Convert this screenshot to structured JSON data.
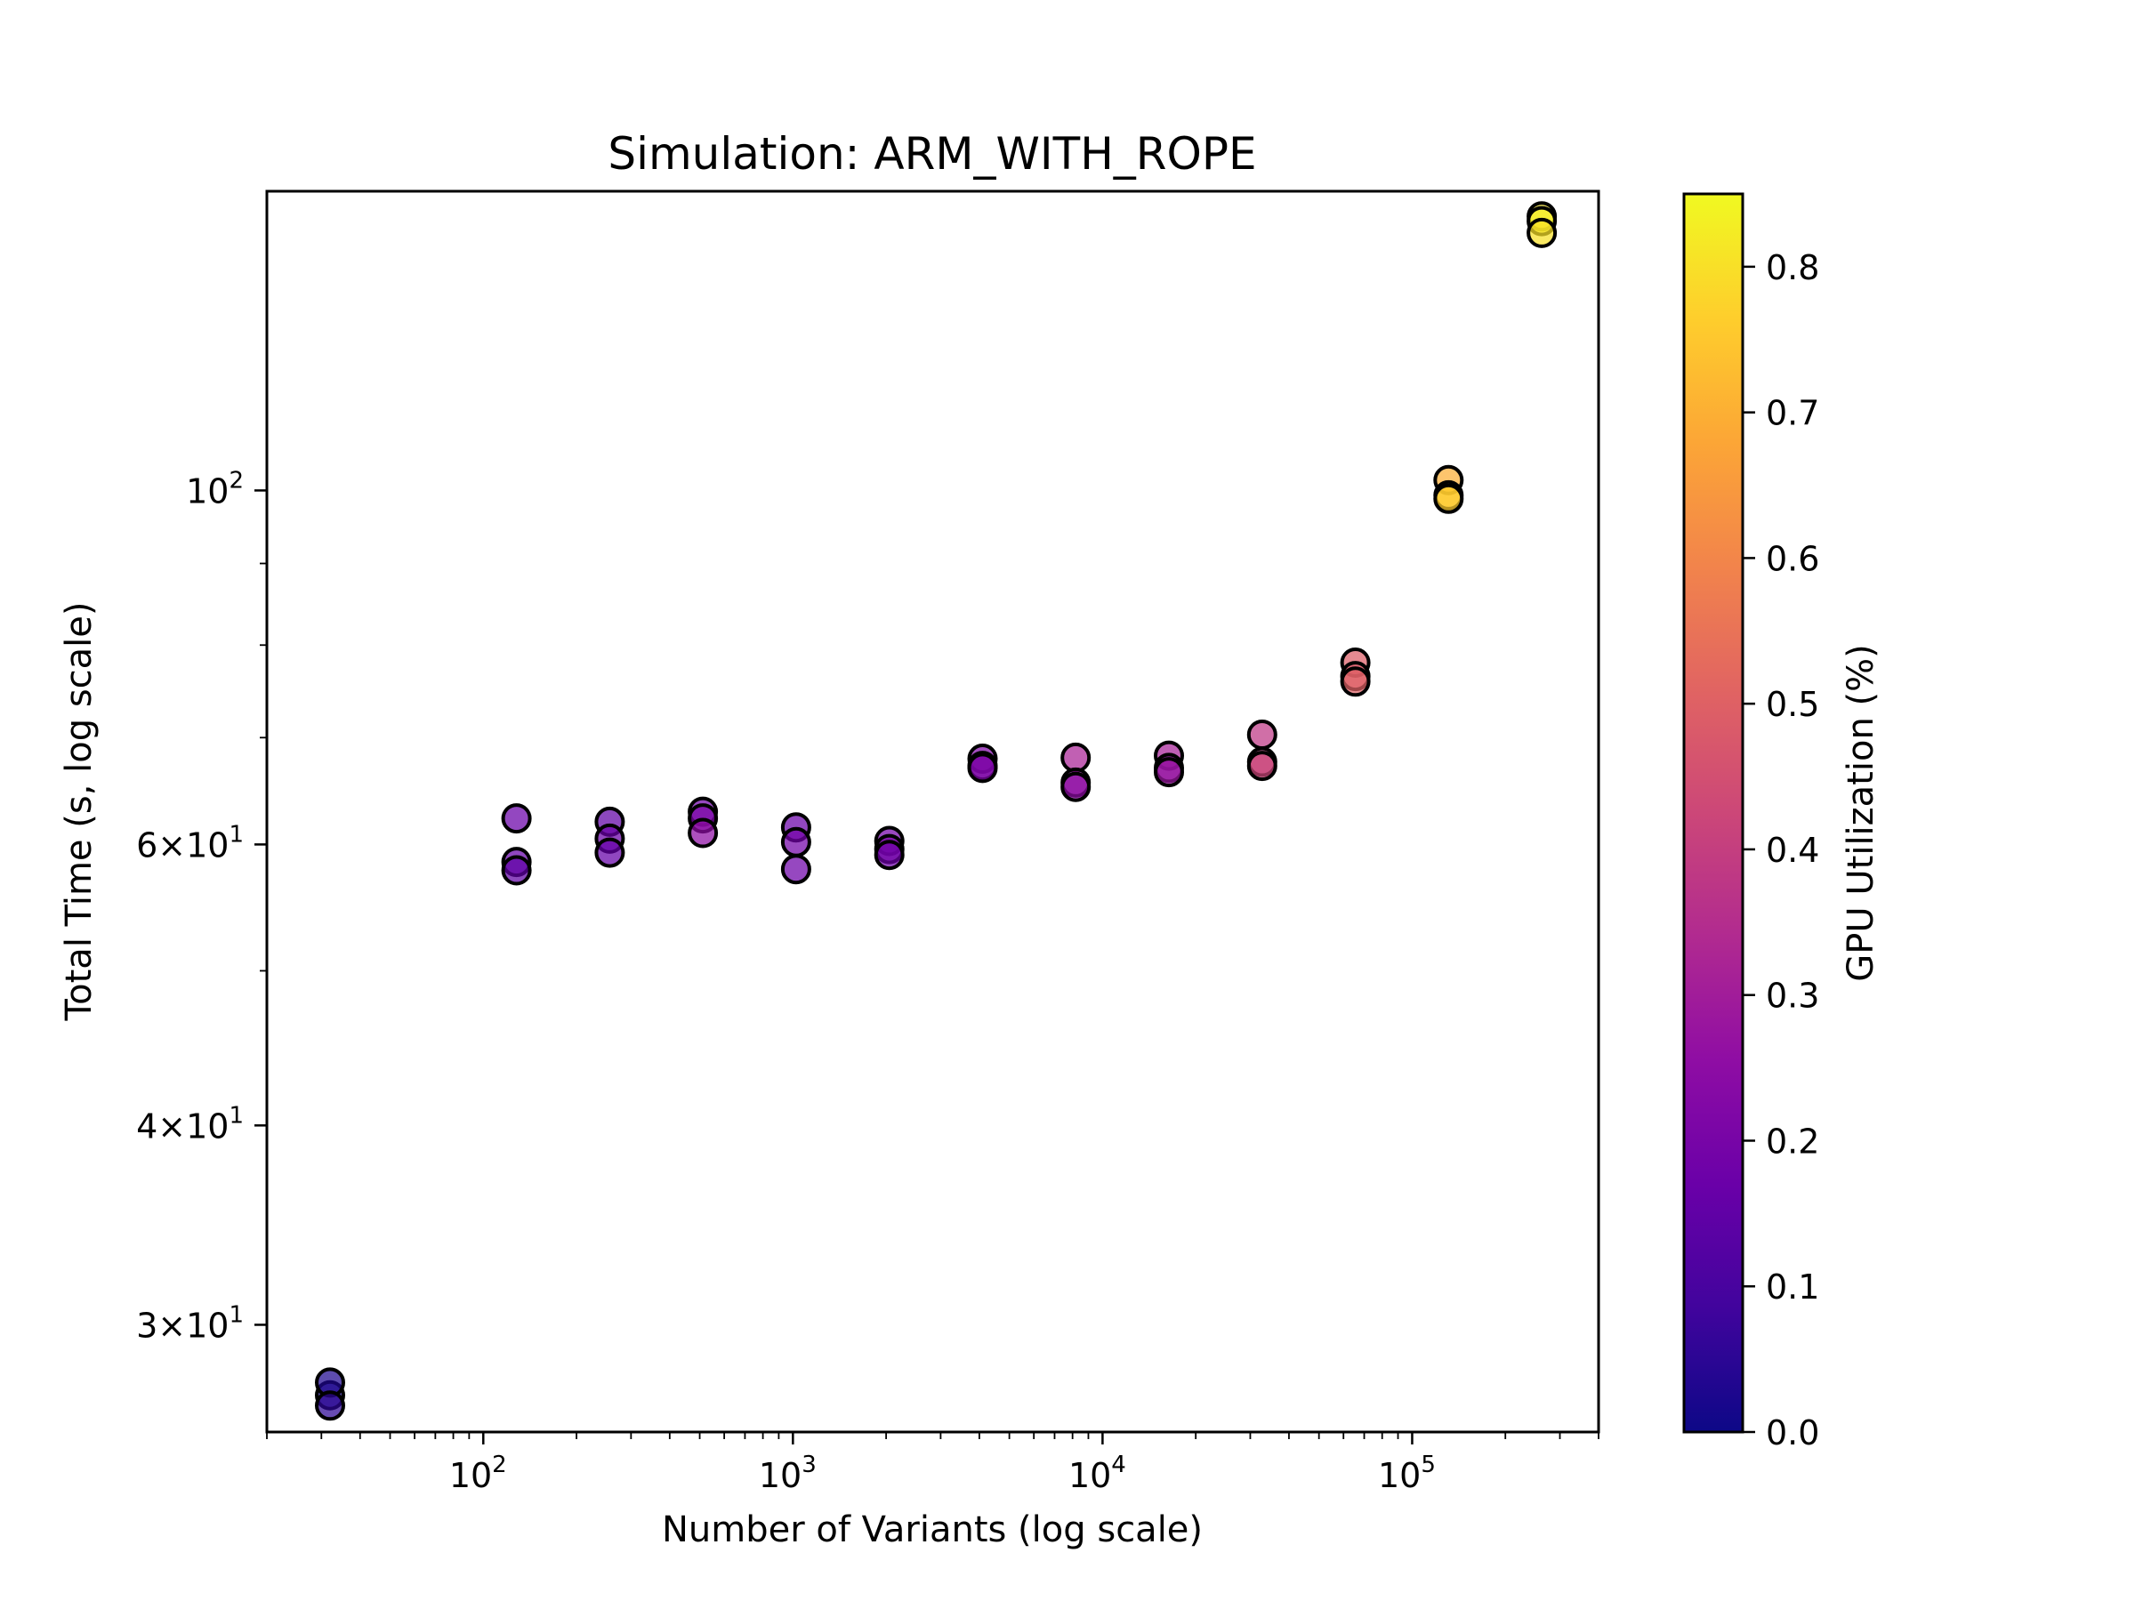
{
  "chart_data": {
    "type": "scatter",
    "title": "Simulation: ARM_WITH_ROPE",
    "xlabel": "Number of Variants (log scale)",
    "ylabel": "Total Time (s, log scale)",
    "xscale": "log",
    "yscale": "log",
    "xlim": [
      20,
      400000
    ],
    "ylim": [
      25.7,
      154
    ],
    "x_ticks": [
      {
        "base": "10",
        "exp": "2",
        "value": 100
      },
      {
        "base": "10",
        "exp": "3",
        "value": 1000
      },
      {
        "base": "10",
        "exp": "4",
        "value": 10000
      },
      {
        "base": "10",
        "exp": "5",
        "value": 100000
      }
    ],
    "y_ticks": [
      {
        "mant": "3",
        "base": "10",
        "exp": "1",
        "value": 30
      },
      {
        "mant": "4",
        "base": "10",
        "exp": "1",
        "value": 40
      },
      {
        "mant": "6",
        "base": "10",
        "exp": "1",
        "value": 60
      },
      {
        "mant": "",
        "base": "10",
        "exp": "2",
        "value": 100
      }
    ],
    "colorbar": {
      "label": "GPU Utilization (%)",
      "colormap": "plasma",
      "range": [
        0.0,
        0.85
      ],
      "ticks": [
        "0.0",
        "0.1",
        "0.2",
        "0.3",
        "0.4",
        "0.5",
        "0.6",
        "0.7",
        "0.8"
      ]
    },
    "grid": false,
    "points": [
      {
        "x": 32,
        "y": 27.1,
        "c": 0.02
      },
      {
        "x": 32,
        "y": 27.6,
        "c": 0.03
      },
      {
        "x": 32,
        "y": 26.7,
        "c": 0.05
      },
      {
        "x": 128,
        "y": 62.3,
        "c": 0.17
      },
      {
        "x": 128,
        "y": 58.5,
        "c": 0.16
      },
      {
        "x": 128,
        "y": 57.8,
        "c": 0.15
      },
      {
        "x": 256,
        "y": 62.0,
        "c": 0.15
      },
      {
        "x": 256,
        "y": 60.5,
        "c": 0.17
      },
      {
        "x": 256,
        "y": 59.3,
        "c": 0.16
      },
      {
        "x": 512,
        "y": 62.9,
        "c": 0.18
      },
      {
        "x": 512,
        "y": 62.3,
        "c": 0.21
      },
      {
        "x": 512,
        "y": 61.0,
        "c": 0.25
      },
      {
        "x": 1024,
        "y": 61.5,
        "c": 0.17
      },
      {
        "x": 1024,
        "y": 60.2,
        "c": 0.19
      },
      {
        "x": 1024,
        "y": 57.9,
        "c": 0.18
      },
      {
        "x": 2048,
        "y": 60.3,
        "c": 0.19
      },
      {
        "x": 2048,
        "y": 59.6,
        "c": 0.21
      },
      {
        "x": 2048,
        "y": 59.1,
        "c": 0.18
      },
      {
        "x": 4096,
        "y": 67.9,
        "c": 0.22
      },
      {
        "x": 4096,
        "y": 67.2,
        "c": 0.23
      },
      {
        "x": 4096,
        "y": 67.0,
        "c": 0.21
      },
      {
        "x": 8192,
        "y": 68.0,
        "c": 0.32
      },
      {
        "x": 8192,
        "y": 65.6,
        "c": 0.27
      },
      {
        "x": 8192,
        "y": 65.2,
        "c": 0.25
      },
      {
        "x": 16384,
        "y": 68.2,
        "c": 0.31
      },
      {
        "x": 16384,
        "y": 67.0,
        "c": 0.25
      },
      {
        "x": 16384,
        "y": 66.6,
        "c": 0.28
      },
      {
        "x": 32768,
        "y": 70.3,
        "c": 0.38
      },
      {
        "x": 32768,
        "y": 67.6,
        "c": 0.4
      },
      {
        "x": 32768,
        "y": 67.2,
        "c": 0.42
      },
      {
        "x": 65536,
        "y": 78.0,
        "c": 0.49
      },
      {
        "x": 65536,
        "y": 76.5,
        "c": 0.48
      },
      {
        "x": 65536,
        "y": 75.9,
        "c": 0.5
      },
      {
        "x": 131072,
        "y": 101.5,
        "c": 0.7
      },
      {
        "x": 131072,
        "y": 99.3,
        "c": 0.74
      },
      {
        "x": 131072,
        "y": 98.8,
        "c": 0.76
      },
      {
        "x": 262144,
        "y": 148.5,
        "c": 0.81
      },
      {
        "x": 262144,
        "y": 147.5,
        "c": 0.83
      },
      {
        "x": 262144,
        "y": 145.0,
        "c": 0.8
      }
    ]
  }
}
